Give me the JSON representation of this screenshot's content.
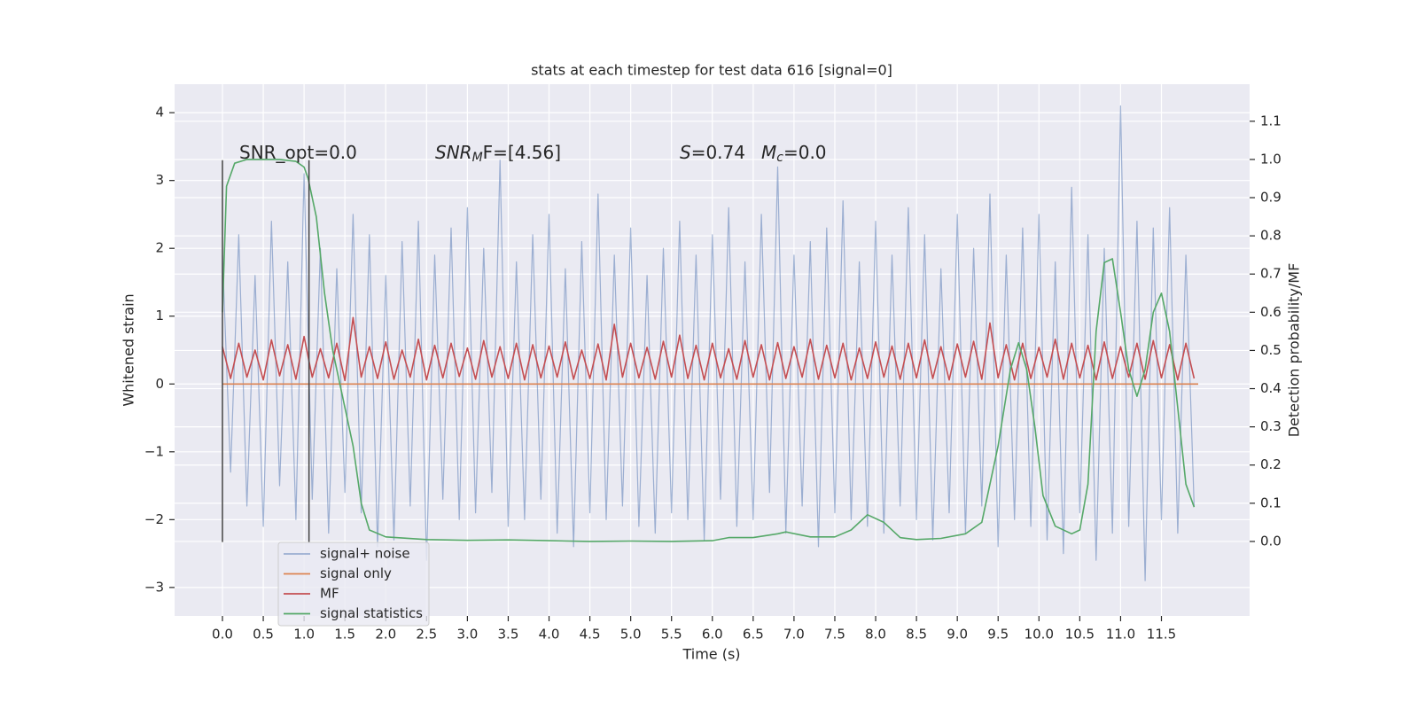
{
  "chart_data": {
    "type": "line",
    "title": "stats at each timestep for test data 616 [signal=0]",
    "xlabel": "Time (s)",
    "ylabel": "Whitened strain",
    "y2label": "Detection probability/MF",
    "xlim": [
      -0.586,
      12.58
    ],
    "ylim": [
      -3.42,
      4.42
    ],
    "y2lim": [
      -0.195,
      1.197
    ],
    "xticks": [
      {
        "value": 0,
        "label": "0.0"
      },
      {
        "value": 0.5,
        "label": "0.5"
      },
      {
        "value": 1,
        "label": "1.0"
      },
      {
        "value": 1.5,
        "label": "1.5"
      },
      {
        "value": 2,
        "label": "2.0"
      },
      {
        "value": 2.5,
        "label": "2.5"
      },
      {
        "value": 3,
        "label": "3.0"
      },
      {
        "value": 3.5,
        "label": "3.5"
      },
      {
        "value": 4,
        "label": "4.0"
      },
      {
        "value": 4.5,
        "label": "4.5"
      },
      {
        "value": 5,
        "label": "5.0"
      },
      {
        "value": 5.5,
        "label": "5.5"
      },
      {
        "value": 6,
        "label": "6.0"
      },
      {
        "value": 6.5,
        "label": "6.5"
      },
      {
        "value": 7,
        "label": "7.0"
      },
      {
        "value": 7.5,
        "label": "7.5"
      },
      {
        "value": 8,
        "label": "8.0"
      },
      {
        "value": 8.5,
        "label": "8.5"
      },
      {
        "value": 9,
        "label": "9.0"
      },
      {
        "value": 9.5,
        "label": "9.5"
      },
      {
        "value": 10,
        "label": "10.0"
      },
      {
        "value": 10.5,
        "label": "10.5"
      },
      {
        "value": 11,
        "label": "11.0"
      },
      {
        "value": 11.5,
        "label": "11.5"
      }
    ],
    "yticks": [
      {
        "value": -3,
        "label": "−3"
      },
      {
        "value": -2,
        "label": "−2"
      },
      {
        "value": -1,
        "label": "−1"
      },
      0,
      1,
      2,
      3,
      4
    ],
    "y2ticks": [
      {
        "value": 0,
        "label": "0.0"
      },
      {
        "value": 0.1,
        "label": "0.1"
      },
      {
        "value": 0.2,
        "label": "0.2"
      },
      {
        "value": 0.3,
        "label": "0.3"
      },
      {
        "value": 0.4,
        "label": "0.4"
      },
      {
        "value": 0.5,
        "label": "0.5"
      },
      {
        "value": 0.6,
        "label": "0.6"
      },
      {
        "value": 0.7,
        "label": "0.7"
      },
      {
        "value": 0.8,
        "label": "0.8"
      },
      {
        "value": 0.9,
        "label": "0.9"
      },
      {
        "value": 1,
        "label": "1.0"
      },
      {
        "value": 1.1,
        "label": "1.1"
      }
    ],
    "grid": true,
    "legend": "lower left",
    "vlines": {
      "x": [
        0,
        1.06
      ],
      "ymin": -2.33,
      "ymax": 3.3
    },
    "annotations": [
      [
        {
          "text": "SNR_opt=0.0"
        }
      ],
      [
        {
          "text": "SNR",
          "style": "italic"
        },
        {
          "text": "M",
          "style": "italic-sub"
        },
        {
          "text": "F=[4.56]"
        }
      ],
      [
        {
          "text": "S",
          "style": "italic"
        },
        {
          "text": "=0.74"
        }
      ],
      [
        {
          "text": "M",
          "style": "italic"
        },
        {
          "text": "c",
          "style": "italic-sub"
        },
        {
          "text": "=0.0"
        }
      ]
    ],
    "series": [
      {
        "name": "signal+ noise",
        "color": "#4c72b0",
        "alpha": 0.5,
        "x": [
          0,
          0.1,
          0.2,
          0.3,
          0.4,
          0.5,
          0.6,
          0.7,
          0.8,
          0.9,
          1,
          1.1,
          1.2,
          1.3,
          1.4,
          1.5,
          1.6,
          1.7,
          1.8,
          1.9,
          2,
          2.1,
          2.2,
          2.3,
          2.4,
          2.5,
          2.6,
          2.7,
          2.8,
          2.9,
          3,
          3.1,
          3.2,
          3.3,
          3.4,
          3.5,
          3.6,
          3.7,
          3.8,
          3.9,
          4,
          4.1,
          4.2,
          4.3,
          4.4,
          4.5,
          4.6,
          4.7,
          4.8,
          4.9,
          5,
          5.1,
          5.2,
          5.3,
          5.4,
          5.5,
          5.6,
          5.7,
          5.8,
          5.9,
          6,
          6.1,
          6.2,
          6.3,
          6.4,
          6.5,
          6.6,
          6.7,
          6.8,
          6.9,
          7,
          7.1,
          7.2,
          7.3,
          7.4,
          7.5,
          7.6,
          7.7,
          7.8,
          7.9,
          8,
          8.1,
          8.2,
          8.3,
          8.4,
          8.5,
          8.6,
          8.7,
          8.8,
          8.9,
          9,
          9.1,
          9.2,
          9.3,
          9.4,
          9.5,
          9.6,
          9.7,
          9.8,
          9.9,
          10,
          10.1,
          10.2,
          10.3,
          10.4,
          10.5,
          10.6,
          10.7,
          10.8,
          10.9,
          11,
          11.1,
          11.2,
          11.3,
          11.4,
          11.5,
          11.6,
          11.7,
          11.8,
          11.9
        ],
        "values": [
          1.9,
          -1.3,
          2.2,
          -1.8,
          1.6,
          -2.1,
          2.4,
          -1.5,
          1.8,
          -2.0,
          3.1,
          -1.7,
          2.0,
          -2.2,
          1.7,
          -1.6,
          2.5,
          -1.9,
          2.2,
          -2.4,
          1.6,
          -2.3,
          2.1,
          -1.8,
          2.4,
          -2.6,
          1.9,
          -1.7,
          2.3,
          -2.0,
          2.6,
          -1.9,
          2.0,
          -1.6,
          3.3,
          -2.1,
          1.8,
          -2.0,
          2.2,
          -1.7,
          2.5,
          -2.2,
          1.7,
          -2.4,
          2.1,
          -1.9,
          2.8,
          -2.0,
          1.9,
          -1.8,
          2.3,
          -2.1,
          1.6,
          -2.2,
          2.0,
          -1.9,
          2.4,
          -2.0,
          1.9,
          -2.3,
          2.2,
          -1.7,
          2.6,
          -2.1,
          1.8,
          -2.0,
          2.5,
          -1.6,
          3.2,
          -2.2,
          1.9,
          -1.8,
          2.1,
          -2.4,
          2.3,
          -1.9,
          2.7,
          -2.0,
          1.8,
          -2.1,
          2.4,
          -2.2,
          1.9,
          -1.8,
          2.6,
          -2.0,
          2.2,
          -2.3,
          1.7,
          -1.9,
          2.5,
          -2.2,
          2.0,
          -1.8,
          2.8,
          -2.4,
          1.9,
          -2.0,
          2.3,
          -2.1,
          2.5,
          -2.3,
          1.8,
          -2.5,
          2.9,
          -1.9,
          2.2,
          -2.6,
          2.0,
          -2.2,
          4.1,
          -2.1,
          2.4,
          -2.9,
          2.3,
          -2.0,
          2.6,
          -2.2,
          1.9,
          -1.8
        ]
      },
      {
        "name": "signal only",
        "color": "#dd8452",
        "alpha": 1,
        "x": [
          0,
          11.95
        ],
        "values": [
          0,
          0
        ]
      },
      {
        "name": "MF",
        "color": "#c44e52",
        "alpha": 1,
        "x": [
          0,
          0.1,
          0.2,
          0.3,
          0.4,
          0.5,
          0.6,
          0.7,
          0.8,
          0.9,
          1,
          1.1,
          1.2,
          1.3,
          1.4,
          1.5,
          1.6,
          1.7,
          1.8,
          1.9,
          2,
          2.1,
          2.2,
          2.3,
          2.4,
          2.5,
          2.6,
          2.7,
          2.8,
          2.9,
          3,
          3.1,
          3.2,
          3.3,
          3.4,
          3.5,
          3.6,
          3.7,
          3.8,
          3.9,
          4,
          4.1,
          4.2,
          4.3,
          4.4,
          4.5,
          4.6,
          4.7,
          4.8,
          4.9,
          5,
          5.1,
          5.2,
          5.3,
          5.4,
          5.5,
          5.6,
          5.7,
          5.8,
          5.9,
          6,
          6.1,
          6.2,
          6.3,
          6.4,
          6.5,
          6.6,
          6.7,
          6.8,
          6.9,
          7,
          7.1,
          7.2,
          7.3,
          7.4,
          7.5,
          7.6,
          7.7,
          7.8,
          7.9,
          8,
          8.1,
          8.2,
          8.3,
          8.4,
          8.5,
          8.6,
          8.7,
          8.8,
          8.9,
          9,
          9.1,
          9.2,
          9.3,
          9.4,
          9.5,
          9.6,
          9.7,
          9.8,
          9.9,
          10,
          10.1,
          10.2,
          10.3,
          10.4,
          10.5,
          10.6,
          10.7,
          10.8,
          10.9,
          11,
          11.1,
          11.2,
          11.3,
          11.4,
          11.5,
          11.6,
          11.7,
          11.8,
          11.9
        ],
        "values": [
          0.55,
          0.08,
          0.6,
          0.1,
          0.5,
          0.06,
          0.65,
          0.12,
          0.58,
          0.07,
          0.7,
          0.1,
          0.52,
          0.09,
          0.6,
          0.05,
          0.98,
          0.1,
          0.55,
          0.08,
          0.62,
          0.07,
          0.5,
          0.1,
          0.66,
          0.06,
          0.57,
          0.09,
          0.6,
          0.11,
          0.53,
          0.07,
          0.64,
          0.1,
          0.55,
          0.08,
          0.6,
          0.06,
          0.58,
          0.09,
          0.56,
          0.1,
          0.62,
          0.07,
          0.5,
          0.08,
          0.59,
          0.06,
          0.88,
          0.1,
          0.6,
          0.09,
          0.54,
          0.07,
          0.63,
          0.1,
          0.72,
          0.08,
          0.57,
          0.06,
          0.6,
          0.09,
          0.52,
          0.07,
          0.64,
          0.1,
          0.58,
          0.06,
          0.61,
          0.08,
          0.55,
          0.1,
          0.66,
          0.07,
          0.57,
          0.09,
          0.6,
          0.06,
          0.53,
          0.08,
          0.62,
          0.1,
          0.56,
          0.07,
          0.6,
          0.09,
          0.65,
          0.08,
          0.55,
          0.06,
          0.59,
          0.1,
          0.63,
          0.07,
          0.9,
          0.09,
          0.58,
          0.06,
          0.6,
          0.08,
          0.54,
          0.1,
          0.66,
          0.07,
          0.6,
          0.09,
          0.57,
          0.06,
          0.62,
          0.08,
          0.55,
          0.1,
          0.6,
          0.07,
          0.64,
          0.09,
          0.58,
          0.06,
          0.6,
          0.08
        ]
      },
      {
        "name": "signal statistics",
        "color": "#55a868",
        "alpha": 1,
        "axis": "y2",
        "x": [
          0,
          0.05,
          0.15,
          0.3,
          0.5,
          0.7,
          0.9,
          1,
          1.05,
          1.15,
          1.25,
          1.35,
          1.5,
          1.6,
          1.7,
          1.8,
          2,
          2.5,
          3,
          3.5,
          4,
          4.5,
          5,
          5.5,
          6,
          6.2,
          6.5,
          6.8,
          6.9,
          7.2,
          7.5,
          7.7,
          7.9,
          8.1,
          8.3,
          8.5,
          8.8,
          9.1,
          9.3,
          9.5,
          9.65,
          9.75,
          9.85,
          9.95,
          10.05,
          10.2,
          10.4,
          10.5,
          10.6,
          10.7,
          10.8,
          10.9,
          11,
          11.1,
          11.2,
          11.3,
          11.4,
          11.5,
          11.6,
          11.7,
          11.8,
          11.9
        ],
        "values": [
          0.6,
          0.93,
          0.99,
          1,
          1,
          1,
          0.995,
          0.98,
          0.95,
          0.85,
          0.65,
          0.5,
          0.35,
          0.25,
          0.1,
          0.03,
          0.012,
          0.005,
          0.003,
          0.004,
          0.002,
          0,
          0.001,
          0,
          0.002,
          0.01,
          0.01,
          0.02,
          0.025,
          0.012,
          0.012,
          0.03,
          0.07,
          0.05,
          0.01,
          0.005,
          0.008,
          0.02,
          0.05,
          0.25,
          0.45,
          0.52,
          0.45,
          0.3,
          0.12,
          0.04,
          0.02,
          0.03,
          0.15,
          0.55,
          0.73,
          0.74,
          0.6,
          0.45,
          0.38,
          0.45,
          0.6,
          0.65,
          0.55,
          0.35,
          0.15,
          0.09
        ]
      }
    ]
  }
}
